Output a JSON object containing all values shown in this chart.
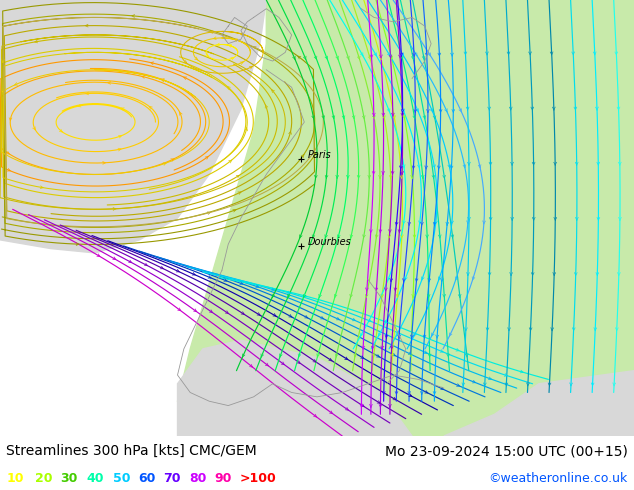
{
  "title_left": "Streamlines 300 hPa [kts] CMC/GEM",
  "title_right": "Mo 23-09-2024 15:00 UTC (00+15)",
  "credit": "©weatheronline.co.uk",
  "legend_values": [
    "10",
    "20",
    "30",
    "40",
    "50",
    "60",
    "70",
    "80",
    "90",
    ">100"
  ],
  "legend_colors": [
    "#ffff00",
    "#aaff00",
    "#44cc00",
    "#00ffaa",
    "#00ccff",
    "#0055ff",
    "#6600ff",
    "#cc00ff",
    "#ff00aa",
    "#ff0000"
  ],
  "bg_color": "#ffffff",
  "text_color": "#000000",
  "title_fontsize": 10,
  "legend_fontsize": 9,
  "credit_color": "#0055ff",
  "figsize": [
    6.34,
    4.9
  ],
  "dpi": 100
}
